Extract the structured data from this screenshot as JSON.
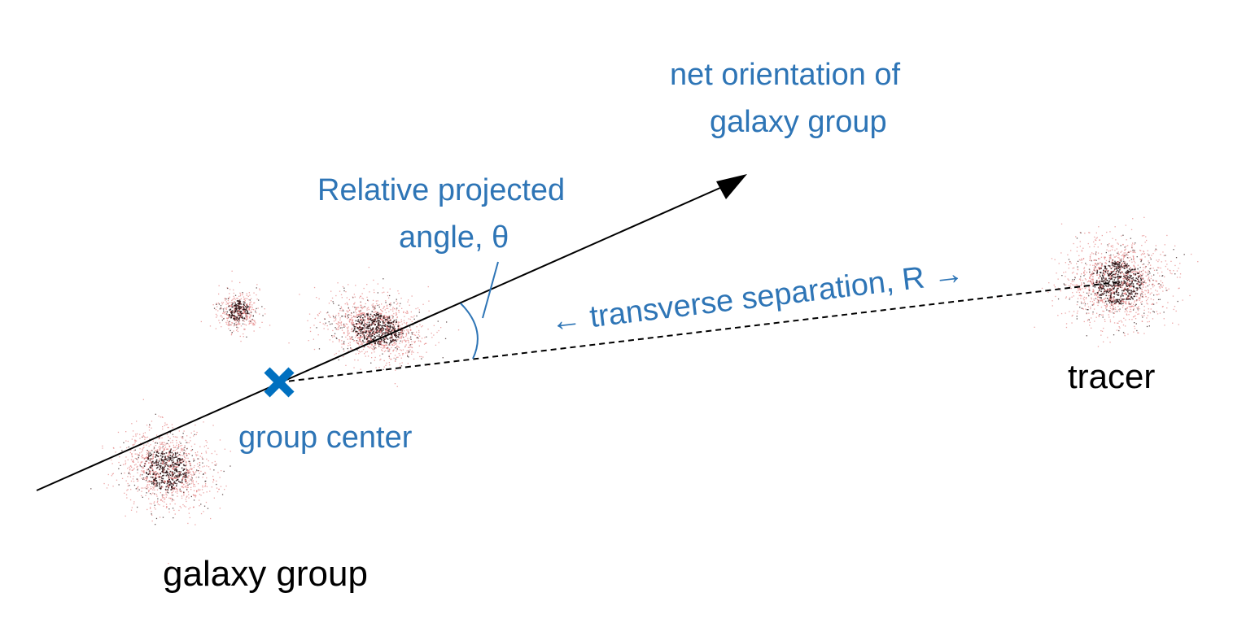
{
  "colors": {
    "label_blue": "#2e75b6",
    "marker_blue": "#0070c0",
    "line_black": "#000000",
    "galaxy_dark": "#2a0f10",
    "galaxy_light": "#e48080"
  },
  "labels": {
    "net_orientation_line1": "net orientation of",
    "net_orientation_line2": "galaxy group",
    "angle_line1": "Relative projected",
    "angle_line2": "angle, θ",
    "separation": "← transverse separation, R →",
    "group_center": "group center",
    "tracer": "tracer",
    "galaxy_group": "galaxy group"
  },
  "icons": {
    "group_center_marker": "x-mark-icon",
    "orientation_arrowhead": "arrowhead-icon"
  }
}
